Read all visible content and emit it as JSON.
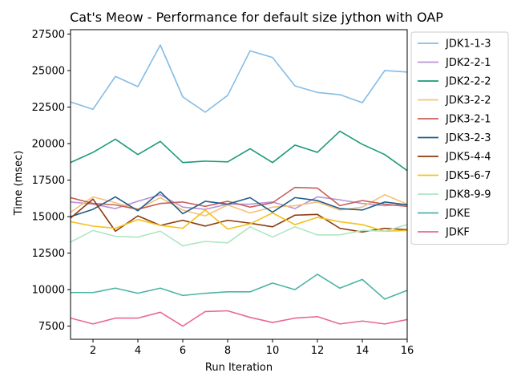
{
  "chart_data": {
    "type": "line",
    "title": "Cat's Meow - Performance for default size jython with OAP",
    "xlabel": "Run Iteration",
    "ylabel": "Time (msec)",
    "xlim": [
      1,
      16
    ],
    "ylim": [
      6600,
      27800
    ],
    "xticks": [
      2,
      4,
      6,
      8,
      10,
      12,
      14,
      16
    ],
    "yticks": [
      7500,
      10000,
      12500,
      15000,
      17500,
      20000,
      22500,
      25000,
      27500
    ],
    "legend_position": "upper-right-outside",
    "x": [
      1,
      2,
      3,
      4,
      5,
      6,
      7,
      8,
      9,
      10,
      11,
      12,
      13,
      14,
      15,
      16
    ],
    "series": [
      {
        "name": "JDK1-1-3",
        "color": "#85bce5",
        "values": [
          22850,
          22350,
          24600,
          23900,
          26750,
          23200,
          22150,
          23300,
          26350,
          25900,
          23950,
          23500,
          23350,
          22800,
          25000,
          24900
        ]
      },
      {
        "name": "JDK2-2-1",
        "color": "#b894d6",
        "values": [
          16000,
          15850,
          15550,
          16050,
          16500,
          15650,
          15500,
          15850,
          15850,
          16000,
          15550,
          16350,
          16150,
          15900,
          15750,
          15850
        ]
      },
      {
        "name": "JDK2-2-2",
        "color": "#1a9a7a",
        "values": [
          18700,
          19400,
          20300,
          19250,
          20150,
          18700,
          18800,
          18750,
          19650,
          18700,
          19900,
          19400,
          20850,
          19950,
          19250,
          18150
        ]
      },
      {
        "name": "JDK3-2-2",
        "color": "#f5c07a",
        "values": [
          15300,
          16350,
          15950,
          15500,
          16300,
          15450,
          15050,
          15800,
          15250,
          15650,
          15750,
          16000,
          15450,
          15650,
          16500,
          15850
        ]
      },
      {
        "name": "JDK3-2-1",
        "color": "#c86058",
        "values": [
          16300,
          15900,
          15800,
          15500,
          15900,
          16000,
          15700,
          16050,
          15650,
          15950,
          17000,
          16950,
          15750,
          16100,
          15850,
          15700
        ]
      },
      {
        "name": "JDK3-2-3",
        "color": "#1f5f8b",
        "values": [
          15000,
          15500,
          16350,
          15400,
          16700,
          15200,
          16050,
          15850,
          16300,
          15300,
          16300,
          16100,
          15550,
          15450,
          16000,
          15800
        ]
      },
      {
        "name": "JDK5-4-4",
        "color": "#8b3a0a",
        "values": [
          14900,
          16200,
          14000,
          15050,
          14400,
          14750,
          14350,
          14750,
          14550,
          14300,
          15100,
          15150,
          14200,
          13950,
          14200,
          14100
        ]
      },
      {
        "name": "JDK5-6-7",
        "color": "#f5c020",
        "values": [
          14650,
          14350,
          14200,
          14800,
          14400,
          14200,
          15450,
          14150,
          14500,
          15250,
          14450,
          14950,
          14650,
          14450,
          14000,
          14050
        ]
      },
      {
        "name": "JDK8-9-9",
        "color": "#aee6c2",
        "values": [
          13250,
          14050,
          13650,
          13600,
          14000,
          13000,
          13300,
          13200,
          14300,
          13600,
          14300,
          13750,
          13750,
          14050,
          14000,
          14450
        ]
      },
      {
        "name": "JDKE",
        "color": "#4db3a6",
        "values": [
          9800,
          9800,
          10100,
          9750,
          10100,
          9600,
          9750,
          9850,
          9850,
          10450,
          10000,
          11050,
          10100,
          10700,
          9350,
          9950
        ]
      },
      {
        "name": "JDKF",
        "color": "#e8679a",
        "values": [
          8050,
          7650,
          8050,
          8050,
          8450,
          7500,
          8500,
          8550,
          8100,
          7750,
          8050,
          8150,
          7650,
          7850,
          7650,
          7950
        ]
      }
    ]
  }
}
